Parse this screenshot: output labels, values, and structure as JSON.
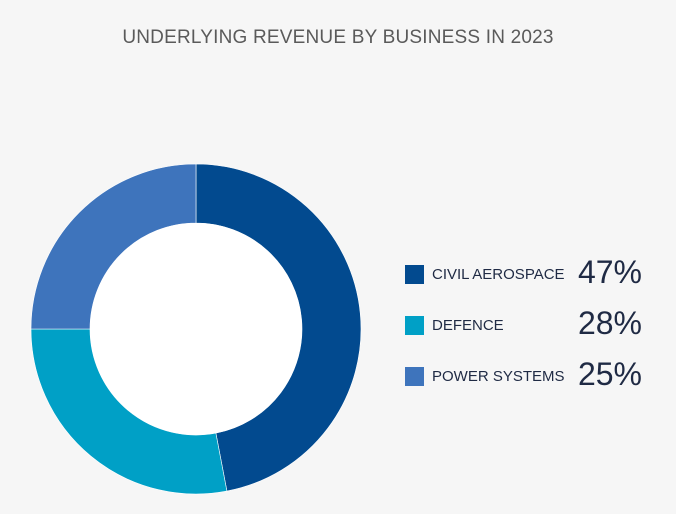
{
  "chart_data": {
    "type": "pie",
    "title": "UNDERLYING REVENUE BY BUSINESS IN 2023",
    "series": [
      {
        "name": "CIVIL AEROSPACE",
        "value": 47,
        "label": "47%",
        "color": "#024a8f"
      },
      {
        "name": "DEFENCE",
        "value": 28,
        "label": "28%",
        "color": "#00a0c6"
      },
      {
        "name": "POWER SYSTEMS",
        "value": 25,
        "label": "25%",
        "color": "#3e74bc"
      }
    ],
    "legend": "right",
    "donut": true
  }
}
